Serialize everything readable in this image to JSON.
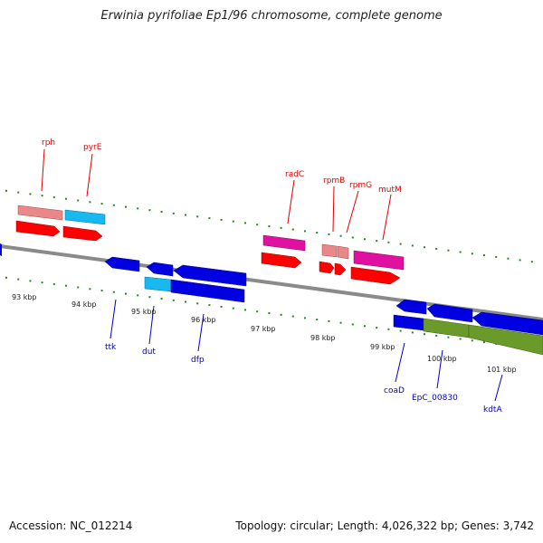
{
  "title": "Erwinia pyrifoliae Ep1/96 chromosome, complete genome",
  "footer": {
    "accession": "Accession: NC_012214",
    "topology": "Topology: circular; Length: 4,026,322 bp; Genes: 3,742"
  },
  "colors": {
    "backbone": "#808080",
    "tick_green": "#1c8c1c",
    "forward_cds": "#ff0000",
    "forward_rna": "#e88080",
    "forward_pink": "#e0109a",
    "reverse_cds": "#0000e0",
    "cyan": "#10b8f0",
    "olive": "#6a9a2a",
    "red_label": "#e00000",
    "blue_label": "#0000c8"
  },
  "kbp_labels": [
    "93 kbp",
    "94 kbp",
    "95 kbp",
    "96 kbp",
    "97 kbp",
    "98 kbp",
    "99 kbp",
    "100 kbp",
    "101 kbp"
  ],
  "forward_gene_labels": [
    "rph",
    "pyrE",
    "radC",
    "rpmB",
    "rpmG",
    "mutM"
  ],
  "reverse_gene_labels": [
    "ttk",
    "dut",
    "dfp",
    "coaD",
    "EpC_00830",
    "kdtA"
  ]
}
